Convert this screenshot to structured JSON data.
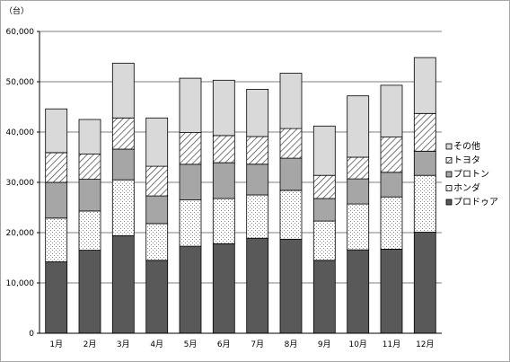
{
  "chart_data": {
    "type": "bar",
    "stacked": true,
    "unit_label": "（台）",
    "categories": [
      "1月",
      "2月",
      "3月",
      "4月",
      "5月",
      "6月",
      "7月",
      "8月",
      "9月",
      "10月",
      "11月",
      "12月"
    ],
    "ylim": [
      0,
      60000
    ],
    "yticks": [
      "0",
      "10,000",
      "20,000",
      "30,000",
      "40,000",
      "50,000",
      "60,000"
    ],
    "grid": true,
    "legend_position": "right",
    "series": [
      {
        "name": "プロドゥア",
        "fill": "solid-dark",
        "color": "#595959",
        "values": [
          14200,
          16500,
          19400,
          14500,
          17300,
          17800,
          18900,
          18700,
          14500,
          16600,
          16700,
          20100
        ]
      },
      {
        "name": "ホンダ",
        "fill": "dots",
        "color": "#ffffff",
        "values": [
          8700,
          7800,
          11100,
          7300,
          9200,
          9000,
          8600,
          9700,
          7800,
          9100,
          10400,
          11300
        ]
      },
      {
        "name": "プロトン",
        "fill": "solid-mid",
        "color": "#a6a6a6",
        "values": [
          7100,
          6300,
          6100,
          5500,
          7100,
          7100,
          6100,
          6400,
          4500,
          5000,
          4900,
          4800
        ]
      },
      {
        "name": "トヨタ",
        "fill": "hatch",
        "color": "#ffffff",
        "values": [
          5900,
          5000,
          6200,
          5900,
          6300,
          5400,
          5500,
          5900,
          4600,
          4300,
          7000,
          7500
        ]
      },
      {
        "name": "その他",
        "fill": "solid-light",
        "color": "#d9d9d9",
        "values": [
          8700,
          6900,
          10900,
          9600,
          10800,
          11000,
          9400,
          11000,
          9800,
          12200,
          10300,
          11100
        ]
      }
    ],
    "legend_order": [
      "その他",
      "トヨタ",
      "プロトン",
      "ホンダ",
      "プロドゥア"
    ]
  }
}
